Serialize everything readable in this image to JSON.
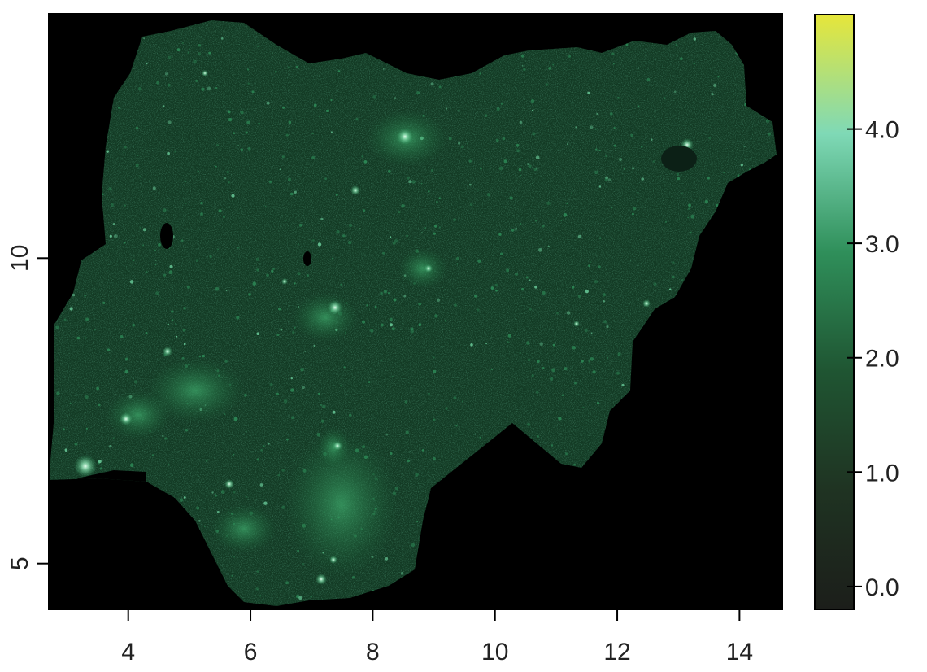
{
  "map": {
    "x_axis": {
      "ticks": [
        4,
        6,
        8,
        10,
        12,
        14
      ],
      "tick_labels": [
        "4",
        "6",
        "8",
        "10",
        "12",
        "14"
      ],
      "range": [
        2.7,
        14.7
      ]
    },
    "y_axis": {
      "ticks": [
        5,
        10
      ],
      "tick_labels": [
        "5",
        "10"
      ],
      "range": [
        4.25,
        14.0
      ]
    },
    "legend": {
      "placement": "right",
      "range": [
        -0.2,
        5.0
      ],
      "ticks": [
        0.0,
        1.0,
        2.0,
        3.0,
        4.0
      ],
      "tick_labels": [
        "0.0",
        "1.0",
        "2.0",
        "3.0",
        "4.0"
      ],
      "color_stops": [
        "#1c1e1a",
        "#1f3322",
        "#1f5532",
        "#2f8f5a",
        "#7fd9b6",
        "#e6e63a"
      ]
    },
    "colors": {
      "background": "#000000",
      "land_base": "#133a24",
      "hotspot_bright": "#a8f0d0",
      "hotspot_mid": "#2f9d62"
    }
  }
}
